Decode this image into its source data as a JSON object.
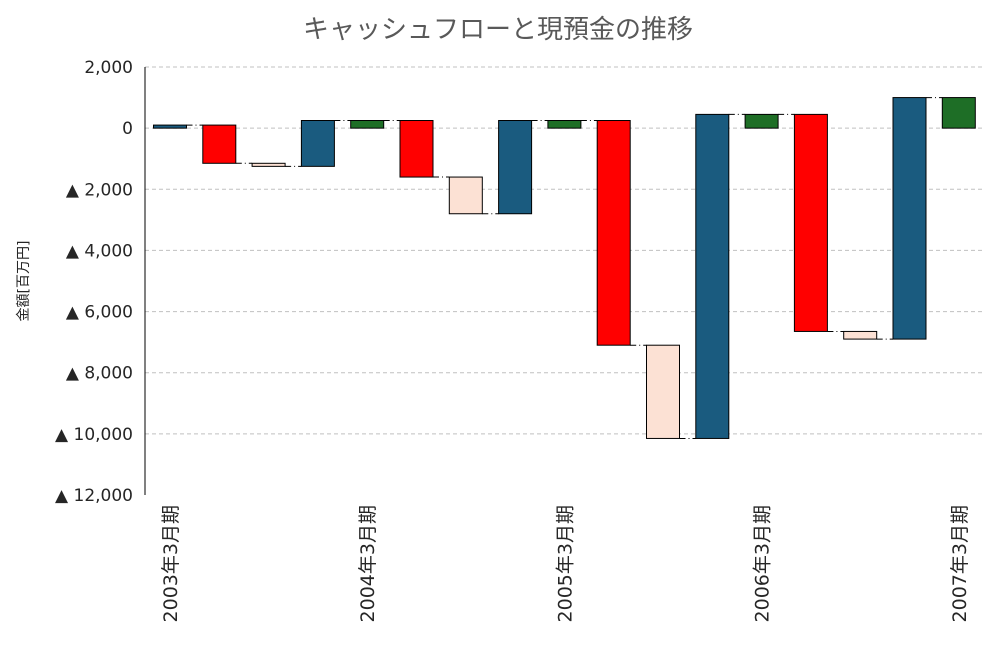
{
  "chart_data": {
    "type": "bar",
    "subtype": "waterfall",
    "title": "キャッシュフローと現預金の推移",
    "ylabel": "金額[百万円]",
    "ylim": [
      -12000,
      2000
    ],
    "yticks": [
      {
        "value": 2000,
        "label": "2,000"
      },
      {
        "value": 0,
        "label": "0"
      },
      {
        "value": -2000,
        "label": "▲ 2,000"
      },
      {
        "value": -4000,
        "label": "▲ 4,000"
      },
      {
        "value": -6000,
        "label": "▲ 6,000"
      },
      {
        "value": -8000,
        "label": "▲ 8,000"
      },
      {
        "value": -10000,
        "label": "▲ 10,000"
      },
      {
        "value": -12000,
        "label": "▲ 12,000"
      }
    ],
    "grid": true,
    "legend": "none",
    "colors": {
      "balance": "#1a5b7f",
      "operating": "#1e6e26",
      "investing": "#ff0000",
      "financing": "#fce1d4"
    },
    "bars": [
      {
        "kind": "balance",
        "low": 0,
        "high": 100
      },
      {
        "kind": "investing",
        "low": -1150,
        "high": 100
      },
      {
        "kind": "financing",
        "low": -1250,
        "high": -1150
      },
      {
        "kind": "balance",
        "low": -1250,
        "high": 250
      },
      {
        "kind": "operating",
        "low": 0,
        "high": 250
      },
      {
        "kind": "investing",
        "low": -1600,
        "high": 250
      },
      {
        "kind": "financing",
        "low": -2800,
        "high": -1600
      },
      {
        "kind": "balance",
        "low": -2800,
        "high": 250
      },
      {
        "kind": "operating",
        "low": 0,
        "high": 250
      },
      {
        "kind": "investing",
        "low": -7100,
        "high": 250
      },
      {
        "kind": "financing",
        "low": -10150,
        "high": -7100
      },
      {
        "kind": "balance",
        "low": -10150,
        "high": 450
      },
      {
        "kind": "operating",
        "low": 0,
        "high": 450
      },
      {
        "kind": "investing",
        "low": -6650,
        "high": 450
      },
      {
        "kind": "financing",
        "low": -6900,
        "high": -6650
      },
      {
        "kind": "balance",
        "low": -6900,
        "high": 1000
      },
      {
        "kind": "operating",
        "low": 0,
        "high": 1000
      }
    ],
    "connectors": [
      {
        "from": 0,
        "to": 1,
        "value": 100
      },
      {
        "from": 1,
        "to": 2,
        "value": -1150
      },
      {
        "from": 2,
        "to": 3,
        "value": -1250
      },
      {
        "from": 3,
        "to": 4,
        "value": 250
      },
      {
        "from": 4,
        "to": 5,
        "value": 250
      },
      {
        "from": 5,
        "to": 6,
        "value": -1600
      },
      {
        "from": 6,
        "to": 7,
        "value": -2800
      },
      {
        "from": 7,
        "to": 8,
        "value": 250
      },
      {
        "from": 8,
        "to": 9,
        "value": 250
      },
      {
        "from": 9,
        "to": 10,
        "value": -7100
      },
      {
        "from": 10,
        "to": 11,
        "value": -10150
      },
      {
        "from": 11,
        "to": 12,
        "value": 450
      },
      {
        "from": 12,
        "to": 13,
        "value": 450
      },
      {
        "from": 13,
        "to": 14,
        "value": -6650
      },
      {
        "from": 14,
        "to": 15,
        "value": -6900
      },
      {
        "from": 15,
        "to": 16,
        "value": 1000
      }
    ],
    "xlabels": [
      {
        "bar": 0,
        "label": "2003年3月期"
      },
      {
        "bar": 4,
        "label": "2004年3月期"
      },
      {
        "bar": 8,
        "label": "2005年3月期"
      },
      {
        "bar": 12,
        "label": "2006年3月期"
      },
      {
        "bar": 16,
        "label": "2007年3月期"
      }
    ]
  }
}
